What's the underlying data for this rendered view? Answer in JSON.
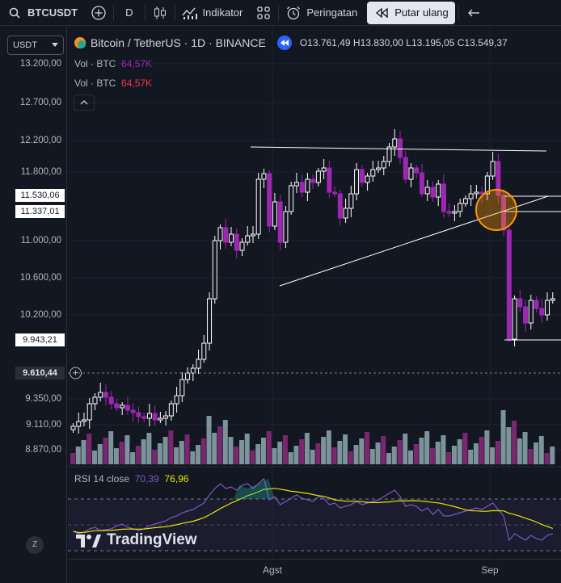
{
  "toolbar": {
    "symbol": "BTCUSDT",
    "interval": "D",
    "indicators_label": "Indikator",
    "alerts_label": "Peringatan",
    "replay_label": "Putar ulang"
  },
  "scale_selector": {
    "value": "USDT"
  },
  "legend": {
    "title": "Bitcoin / TetherUS · 1D · BINANCE",
    "open_label": "O",
    "open": "13.761,49",
    "high_label": "H",
    "high": "13.830,00",
    "low_label": "L",
    "low": "13.195,05",
    "close_label": "C",
    "close": "13.549,37"
  },
  "volume_legends": [
    {
      "label": "Vol · BTC",
      "value": "64,57K"
    },
    {
      "label": "Vol · BTC",
      "value": "64,57K"
    }
  ],
  "price_ticks": [
    "13.200,00",
    "12.700,00",
    "12.200,00",
    "11.800,00",
    "11.000,00",
    "10.600,00",
    "10.200,00",
    "9.350,00",
    "9.110,00",
    "8.870,00"
  ],
  "price_tags": {
    "line_a": "11.530,06",
    "line_b": "11.337,01",
    "line_c": "9.943,21",
    "last_price": "9.610,44"
  },
  "rsi_legend": {
    "label": "RSI 14 close",
    "rsi": "70,39",
    "ma": "76,96"
  },
  "watermark": "TradingView",
  "x_axis": [
    "Agst",
    "Sep"
  ],
  "colors": {
    "up": "#ffffff",
    "down": "#9c27b0",
    "rsi": "#7e57c2",
    "rsi_ma": "#e6e600",
    "accent": "#ff9800"
  }
}
